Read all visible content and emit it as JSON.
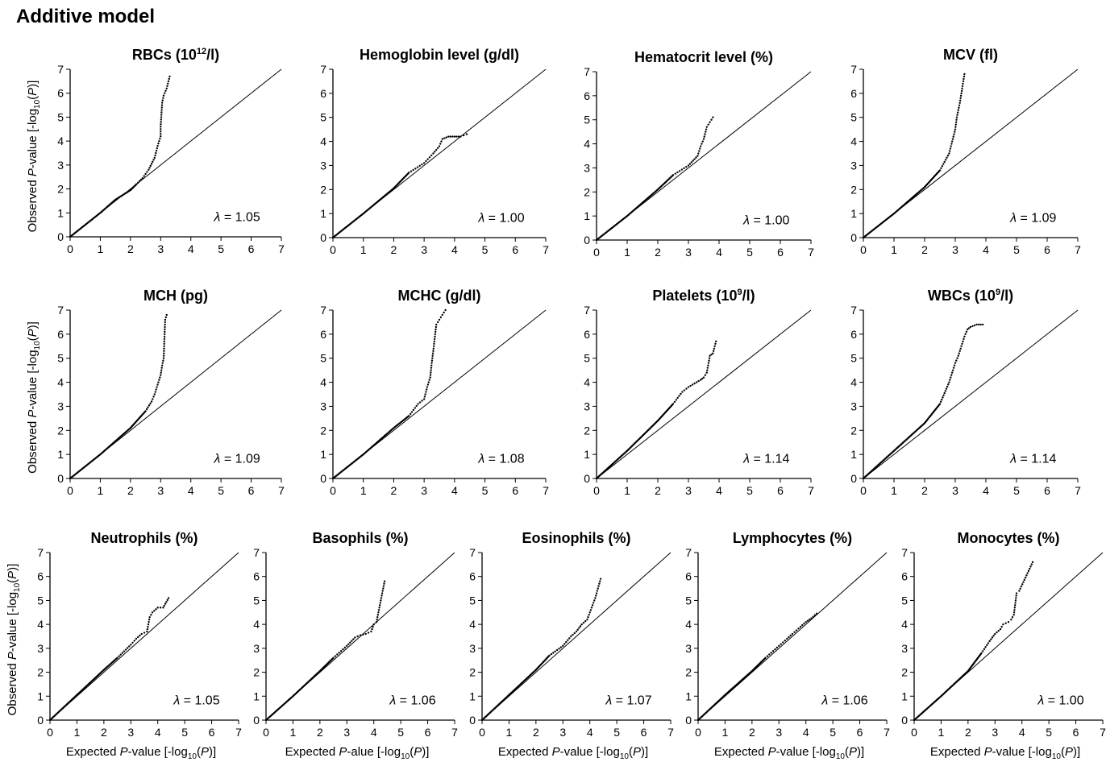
{
  "figure_title": "Additive model",
  "chart_data": [
    {
      "type": "scatter",
      "title": "RBCs (10",
      "title_sup": "12",
      "title_after": "/l)",
      "lambda": "1.05",
      "xlim": [
        0,
        7
      ],
      "ylim": [
        0,
        7
      ],
      "ticks": [
        0,
        1,
        2,
        3,
        4,
        5,
        6,
        7
      ],
      "reference_line": "y = x",
      "ylabel_shown": true,
      "xlabel_shown": false,
      "points": [
        [
          0,
          0
        ],
        [
          0.5,
          0.5
        ],
        [
          1,
          1
        ],
        [
          1.5,
          1.55
        ],
        [
          2,
          1.95
        ],
        [
          2.2,
          2.2
        ],
        [
          2.4,
          2.45
        ],
        [
          2.6,
          2.8
        ],
        [
          2.8,
          3.3
        ],
        [
          2.9,
          3.8
        ],
        [
          3.0,
          4.2
        ],
        [
          3.0,
          4.6
        ],
        [
          3.05,
          5.6
        ],
        [
          3.1,
          5.9
        ],
        [
          3.2,
          6.2
        ],
        [
          3.3,
          6.7
        ]
      ]
    },
    {
      "type": "scatter",
      "title": "Hemoglobin level (g/dl)",
      "lambda": "1.00",
      "xlim": [
        0,
        7
      ],
      "ylim": [
        0,
        7
      ],
      "ticks": [
        0,
        1,
        2,
        3,
        4,
        5,
        6,
        7
      ],
      "reference_line": "y = x",
      "ylabel_shown": false,
      "xlabel_shown": false,
      "points": [
        [
          0,
          0
        ],
        [
          1,
          1
        ],
        [
          2,
          2.05
        ],
        [
          2.5,
          2.7
        ],
        [
          3,
          3.1
        ],
        [
          3.3,
          3.5
        ],
        [
          3.5,
          3.8
        ],
        [
          3.6,
          4.1
        ],
        [
          3.8,
          4.2
        ],
        [
          4.0,
          4.2
        ],
        [
          4.2,
          4.2
        ],
        [
          4.3,
          4.25
        ],
        [
          4.4,
          4.3
        ]
      ]
    },
    {
      "type": "scatter",
      "title": "Hematocrit level (%)",
      "lambda": "1.00",
      "xlim": [
        0,
        7
      ],
      "ylim": [
        0,
        7
      ],
      "ticks": [
        0,
        1,
        2,
        3,
        4,
        5,
        6,
        7
      ],
      "reference_line": "y = x",
      "ylabel_shown": false,
      "xlabel_shown": false,
      "points": [
        [
          0,
          0
        ],
        [
          1,
          1
        ],
        [
          2,
          2.1
        ],
        [
          2.5,
          2.7
        ],
        [
          3,
          3.1
        ],
        [
          3.3,
          3.5
        ],
        [
          3.4,
          3.9
        ],
        [
          3.5,
          4.2
        ],
        [
          3.6,
          4.7
        ],
        [
          3.7,
          4.9
        ],
        [
          3.8,
          5.1
        ]
      ]
    },
    {
      "type": "scatter",
      "title": "MCV (fl)",
      "lambda": "1.09",
      "xlim": [
        0,
        7
      ],
      "ylim": [
        0,
        7
      ],
      "ticks": [
        0,
        1,
        2,
        3,
        4,
        5,
        6,
        7
      ],
      "reference_line": "y = x",
      "ylabel_shown": false,
      "xlabel_shown": false,
      "points": [
        [
          0,
          0
        ],
        [
          1,
          1
        ],
        [
          2,
          2.1
        ],
        [
          2.5,
          2.8
        ],
        [
          2.8,
          3.5
        ],
        [
          2.9,
          4.0
        ],
        [
          3.0,
          4.5
        ],
        [
          3.05,
          5.0
        ],
        [
          3.1,
          5.3
        ],
        [
          3.15,
          5.6
        ],
        [
          3.2,
          6.0
        ],
        [
          3.3,
          6.8
        ]
      ]
    },
    {
      "type": "scatter",
      "title": "MCH (pg)",
      "lambda": "1.09",
      "xlim": [
        0,
        7
      ],
      "ylim": [
        0,
        7
      ],
      "ticks": [
        0,
        1,
        2,
        3,
        4,
        5,
        6,
        7
      ],
      "reference_line": "y = x",
      "ylabel_shown": true,
      "xlabel_shown": false,
      "points": [
        [
          0,
          0
        ],
        [
          1,
          1
        ],
        [
          2,
          2.1
        ],
        [
          2.5,
          2.8
        ],
        [
          2.7,
          3.2
        ],
        [
          2.8,
          3.5
        ],
        [
          2.9,
          3.9
        ],
        [
          3.0,
          4.3
        ],
        [
          3.05,
          4.7
        ],
        [
          3.1,
          5.0
        ],
        [
          3.15,
          6.6
        ],
        [
          3.2,
          6.8
        ]
      ]
    },
    {
      "type": "scatter",
      "title": "MCHC (g/dl)",
      "lambda": "1.08",
      "xlim": [
        0,
        7
      ],
      "ylim": [
        0,
        7
      ],
      "ticks": [
        0,
        1,
        2,
        3,
        4,
        5,
        6,
        7
      ],
      "reference_line": "y = x",
      "ylabel_shown": false,
      "xlabel_shown": false,
      "points": [
        [
          0,
          0
        ],
        [
          1,
          1
        ],
        [
          2,
          2.1
        ],
        [
          2.5,
          2.6
        ],
        [
          2.8,
          3.1
        ],
        [
          3.0,
          3.3
        ],
        [
          3.1,
          3.8
        ],
        [
          3.2,
          4.2
        ],
        [
          3.25,
          4.8
        ],
        [
          3.3,
          5.3
        ],
        [
          3.4,
          6.4
        ],
        [
          3.5,
          6.6
        ],
        [
          3.6,
          6.8
        ],
        [
          3.7,
          7.0
        ]
      ]
    },
    {
      "type": "scatter",
      "title": "Platelets (10",
      "title_sup": "9",
      "title_after": "/l)",
      "lambda": "1.14",
      "xlim": [
        0,
        7
      ],
      "ylim": [
        0,
        7
      ],
      "ticks": [
        0,
        1,
        2,
        3,
        4,
        5,
        6,
        7
      ],
      "reference_line": "y = x",
      "ylabel_shown": false,
      "xlabel_shown": false,
      "points": [
        [
          0,
          0
        ],
        [
          1,
          1.15
        ],
        [
          2,
          2.4
        ],
        [
          2.5,
          3.1
        ],
        [
          2.8,
          3.6
        ],
        [
          3.0,
          3.8
        ],
        [
          3.2,
          3.95
        ],
        [
          3.4,
          4.1
        ],
        [
          3.5,
          4.2
        ],
        [
          3.6,
          4.4
        ],
        [
          3.7,
          5.1
        ],
        [
          3.8,
          5.2
        ],
        [
          3.9,
          5.7
        ]
      ]
    },
    {
      "type": "scatter",
      "title": "WBCs (10",
      "title_sup": "9",
      "title_after": "/l)",
      "lambda": "1.14",
      "xlim": [
        0,
        7
      ],
      "ylim": [
        0,
        7
      ],
      "ticks": [
        0,
        1,
        2,
        3,
        4,
        5,
        6,
        7
      ],
      "reference_line": "y = x",
      "ylabel_shown": false,
      "xlabel_shown": false,
      "points": [
        [
          0,
          0
        ],
        [
          1,
          1.15
        ],
        [
          2,
          2.3
        ],
        [
          2.5,
          3.1
        ],
        [
          2.8,
          4.0
        ],
        [
          3.0,
          4.8
        ],
        [
          3.1,
          5.1
        ],
        [
          3.2,
          5.5
        ],
        [
          3.3,
          5.9
        ],
        [
          3.4,
          6.2
        ],
        [
          3.5,
          6.3
        ],
        [
          3.7,
          6.4
        ],
        [
          3.9,
          6.4
        ]
      ]
    },
    {
      "type": "scatter",
      "title": "Neutrophils (%)",
      "lambda": "1.05",
      "xlim": [
        0,
        7
      ],
      "ylim": [
        0,
        7
      ],
      "ticks": [
        0,
        1,
        2,
        3,
        4,
        5,
        6,
        7
      ],
      "reference_line": "y = x",
      "ylabel_shown": true,
      "xlabel_shown": true,
      "points": [
        [
          0,
          0
        ],
        [
          1,
          1.05
        ],
        [
          2,
          2.1
        ],
        [
          2.5,
          2.6
        ],
        [
          3,
          3.15
        ],
        [
          3.2,
          3.4
        ],
        [
          3.4,
          3.6
        ],
        [
          3.6,
          3.7
        ],
        [
          3.7,
          4.3
        ],
        [
          3.8,
          4.5
        ],
        [
          4.0,
          4.7
        ],
        [
          4.2,
          4.7
        ],
        [
          4.4,
          5.1
        ]
      ]
    },
    {
      "type": "scatter",
      "title": "Basophils (%)",
      "lambda": "1.06",
      "xlim": [
        0,
        7
      ],
      "ylim": [
        0,
        7
      ],
      "ticks": [
        0,
        1,
        2,
        3,
        4,
        5,
        6,
        7
      ],
      "reference_line": "y = x",
      "ylabel_shown": false,
      "xlabel_shown": true,
      "points": [
        [
          0,
          0
        ],
        [
          1,
          1
        ],
        [
          2,
          2.05
        ],
        [
          2.5,
          2.6
        ],
        [
          3,
          3.1
        ],
        [
          3.3,
          3.45
        ],
        [
          3.5,
          3.55
        ],
        [
          3.7,
          3.6
        ],
        [
          3.9,
          3.7
        ],
        [
          4.0,
          4.0
        ],
        [
          4.1,
          4.1
        ],
        [
          4.4,
          5.8
        ]
      ]
    },
    {
      "type": "scatter",
      "title": "Eosinophils (%)",
      "lambda": "1.07",
      "xlim": [
        0,
        7
      ],
      "ylim": [
        0,
        7
      ],
      "ticks": [
        0,
        1,
        2,
        3,
        4,
        5,
        6,
        7
      ],
      "reference_line": "y = x",
      "ylabel_shown": false,
      "xlabel_shown": true,
      "points": [
        [
          0,
          0
        ],
        [
          1,
          1.05
        ],
        [
          2,
          2.1
        ],
        [
          2.5,
          2.7
        ],
        [
          3,
          3.1
        ],
        [
          3.3,
          3.5
        ],
        [
          3.5,
          3.7
        ],
        [
          3.7,
          4.0
        ],
        [
          3.9,
          4.2
        ],
        [
          4.0,
          4.5
        ],
        [
          4.2,
          5.1
        ],
        [
          4.4,
          5.9
        ]
      ]
    },
    {
      "type": "scatter",
      "title": "Lymphocytes (%)",
      "lambda": "1.06",
      "xlim": [
        0,
        7
      ],
      "ylim": [
        0,
        7
      ],
      "ticks": [
        0,
        1,
        2,
        3,
        4,
        5,
        6,
        7
      ],
      "reference_line": "y = x",
      "ylabel_shown": false,
      "xlabel_shown": true,
      "points": [
        [
          0,
          0
        ],
        [
          1,
          1.05
        ],
        [
          2,
          2.05
        ],
        [
          2.5,
          2.6
        ],
        [
          3,
          3.1
        ],
        [
          3.3,
          3.4
        ],
        [
          3.5,
          3.6
        ],
        [
          3.8,
          3.9
        ],
        [
          4.0,
          4.1
        ],
        [
          4.2,
          4.25
        ],
        [
          4.4,
          4.45
        ]
      ]
    },
    {
      "type": "scatter",
      "title": "Monocytes (%)",
      "lambda": "1.00",
      "xlim": [
        0,
        7
      ],
      "ylim": [
        0,
        7
      ],
      "ticks": [
        0,
        1,
        2,
        3,
        4,
        5,
        6,
        7
      ],
      "reference_line": "y = x",
      "ylabel_shown": false,
      "xlabel_shown": true,
      "points": [
        [
          0,
          0
        ],
        [
          1,
          1
        ],
        [
          2,
          2.05
        ],
        [
          2.5,
          2.8
        ],
        [
          2.8,
          3.3
        ],
        [
          3,
          3.6
        ],
        [
          3.2,
          3.8
        ],
        [
          3.3,
          4.0
        ],
        [
          3.5,
          4.1
        ],
        [
          3.6,
          4.2
        ],
        [
          3.7,
          4.4
        ],
        [
          3.8,
          5.3
        ],
        [
          3.9,
          5.4
        ],
        [
          4.4,
          6.6
        ]
      ]
    }
  ],
  "labels": {
    "lambda_symbol": "λ",
    "y_axis_prefix": "Observed ",
    "y_axis_italic": "P",
    "y_axis_mid": "-value [-log",
    "y_axis_sub": "10",
    "y_axis_end": "(P)]",
    "x_axis_prefix": "Expected ",
    "x_axis_italic": "P",
    "x_axis_mid": "-value [-log",
    "x_axis_sub": "10",
    "x_axis_end": "(P)]",
    "x_axis_alt_mid": "-alue [-log"
  }
}
